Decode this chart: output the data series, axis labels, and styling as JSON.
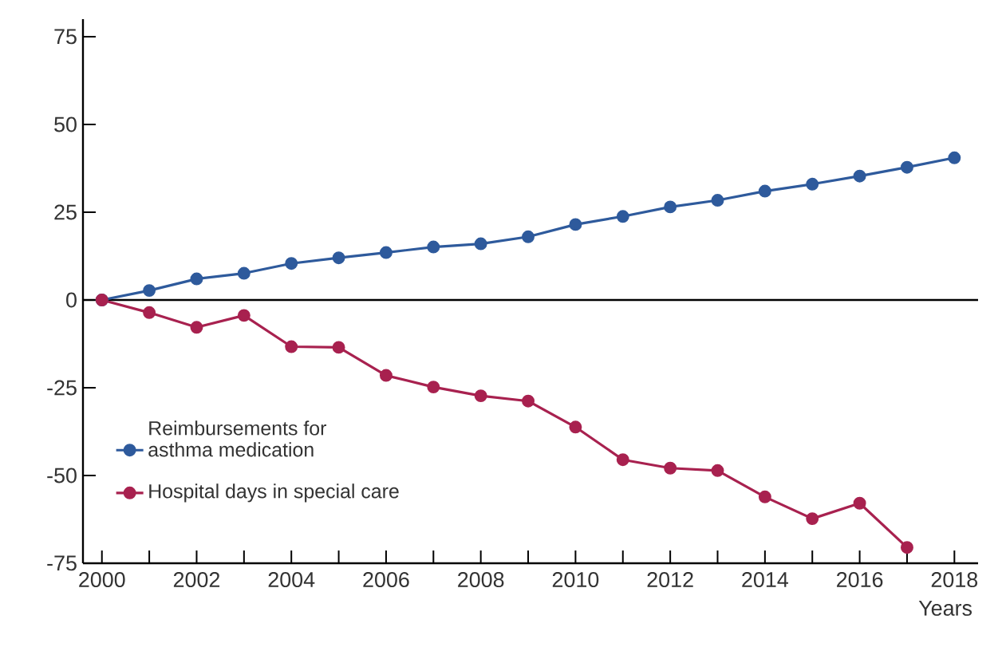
{
  "chart_data": {
    "type": "line",
    "xlabel": "Years",
    "x": [
      2000,
      2001,
      2002,
      2003,
      2004,
      2005,
      2006,
      2007,
      2008,
      2009,
      2010,
      2011,
      2012,
      2013,
      2014,
      2015,
      2016,
      2017,
      2018
    ],
    "series": [
      {
        "name": "Reimbursements for asthma medication",
        "color": "#2e5a9c",
        "values": [
          0,
          2.7,
          6,
          7.6,
          10.4,
          12,
          13.5,
          15.1,
          16,
          18,
          21.5,
          23.8,
          26.5,
          28.4,
          31,
          33,
          35.3,
          37.8,
          40.5
        ]
      },
      {
        "name": "Hospital days in special care",
        "color": "#a8214f",
        "values": [
          0,
          -3.6,
          -7.8,
          -4.4,
          -13.3,
          -13.5,
          -21.5,
          -24.8,
          -27.3,
          -28.8,
          -36.2,
          -45.5,
          -47.9,
          -48.6,
          -56.1,
          -62.3,
          -57.9,
          -70.5,
          null
        ]
      }
    ],
    "xlim": [
      1999.6,
      2018.5
    ],
    "ylim": [
      -75,
      80
    ],
    "xticks": [
      2000,
      {
        "value": 2001,
        "label": null
      },
      2002,
      {
        "value": 2003,
        "label": null
      },
      2004,
      {
        "value": 2005,
        "label": null
      },
      2006,
      {
        "value": 2007,
        "label": null
      },
      2008,
      {
        "value": 2009,
        "label": null
      },
      2010,
      {
        "value": 2011,
        "label": null
      },
      2012,
      {
        "value": 2013,
        "label": null
      },
      2014,
      {
        "value": 2015,
        "label": null
      },
      2016,
      {
        "value": 2017,
        "label": null
      },
      2018
    ],
    "yticks": [
      -75,
      -50,
      -25,
      0,
      25,
      50,
      75
    ],
    "ref_lines": [
      {
        "axis": "y",
        "value": 0,
        "color": "#000000"
      }
    ],
    "grid": false,
    "legend": "bottom left",
    "marker": "circle",
    "line_style": "solid"
  }
}
